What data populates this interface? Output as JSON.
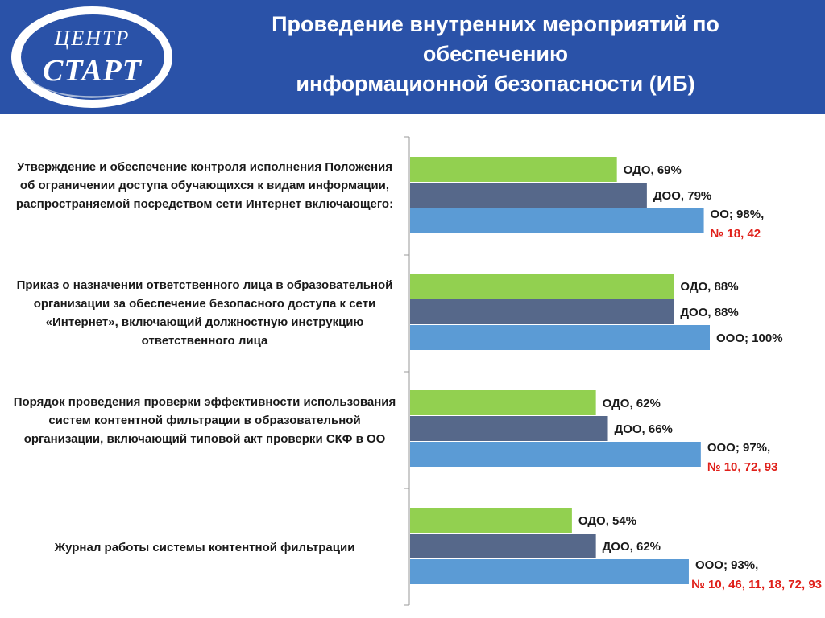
{
  "header": {
    "title_lines": [
      "Проведение внутренних мероприятий по",
      "обеспечению",
      "информационной безопасности (ИБ)"
    ],
    "logo": {
      "line1": "ЦЕНТР",
      "line2": "СТАРТ"
    }
  },
  "colors": {
    "header_bg": "#2a52a8",
    "odo": "#92d050",
    "doo": "#56688a",
    "ooo": "#5b9bd5",
    "label_red": "#e0201a"
  },
  "chart_data": {
    "type": "bar",
    "orientation": "horizontal",
    "categories": [
      "Утверждение и обеспечение контроля исполнения Положения об ограничении доступа обучающихся к видам информации, распространяемой посредством сети Интернет включающего:",
      "Приказ о назначении ответственного лица в образовательной организации за обеспечение безопасного доступа к сети «Интернет», включающий должностную инструкцию ответственного лица",
      "Порядок проведения проверки эффективности использования систем контентной фильтрации в образовательной организации, включающий типовой акт проверки СКФ в ОО",
      "Журнал работы системы контентной фильтрации"
    ],
    "series": [
      {
        "name": "ОДО",
        "values": [
          69,
          88,
          62,
          54
        ]
      },
      {
        "name": "ДОО",
        "values": [
          79,
          88,
          66,
          62
        ]
      },
      {
        "name": "ООО",
        "values": [
          98,
          100,
          97,
          93
        ]
      }
    ],
    "xlim": [
      0,
      100
    ],
    "data_labels": [
      [
        {
          "main": "ОДО, 69%",
          "extra": ""
        },
        {
          "main": "ДОО, 79%",
          "extra": ""
        },
        {
          "main": "ОО; 98%,",
          "extra": "№ 18, 42"
        }
      ],
      [
        {
          "main": "ОДО, 88%",
          "extra": ""
        },
        {
          "main": "ДОО, 88%",
          "extra": ""
        },
        {
          "main": "ООО; 100%",
          "extra": ""
        }
      ],
      [
        {
          "main": "ОДО, 62%",
          "extra": ""
        },
        {
          "main": "ДОО, 66%",
          "extra": ""
        },
        {
          "main": "ООО; 97%,",
          "extra": "№ 10, 72, 93"
        }
      ],
      [
        {
          "main": "ОДО, 54%",
          "extra": ""
        },
        {
          "main": "ДОО, 62%",
          "extra": ""
        },
        {
          "main": "ООО; 93%,",
          "extra": "№ 10, 46, 11, 18, 72, 93"
        }
      ]
    ],
    "grid": false,
    "legend": "none"
  }
}
